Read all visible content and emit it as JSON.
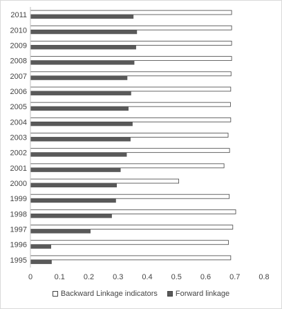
{
  "chart_data": {
    "type": "bar",
    "orientation": "horizontal",
    "categories": [
      "1995",
      "1996",
      "1997",
      "1998",
      "1999",
      "2000",
      "2001",
      "2002",
      "2003",
      "2004",
      "2005",
      "2006",
      "2007",
      "2008",
      "2009",
      "2010",
      "2011"
    ],
    "series": [
      {
        "name": "Backward Linkage indicators",
        "color": "#ffffff",
        "values": [
          0.686,
          0.678,
          0.693,
          0.703,
          0.681,
          0.508,
          0.663,
          0.682,
          0.677,
          0.686,
          0.685,
          0.686,
          0.687,
          0.689,
          0.689,
          0.689,
          0.689
        ]
      },
      {
        "name": "Forward linkage",
        "color": "#595959",
        "values": [
          0.073,
          0.071,
          0.206,
          0.279,
          0.293,
          0.296,
          0.309,
          0.33,
          0.343,
          0.35,
          0.336,
          0.345,
          0.332,
          0.356,
          0.362,
          0.365,
          0.353
        ]
      }
    ],
    "xlim": [
      0,
      0.8
    ],
    "xticks": [
      "0",
      "0.1",
      "0.2",
      "0.3",
      "0.4",
      "0.5",
      "0.6",
      "0.7",
      "0.8"
    ],
    "grid": false,
    "legend_position": "bottom"
  }
}
